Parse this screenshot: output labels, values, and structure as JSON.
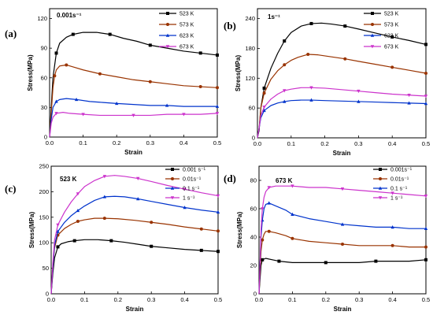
{
  "chart_data": [
    {
      "type": "line",
      "panel_label": "(a)",
      "annotation": "0.001s⁻¹",
      "xlabel": "Strain",
      "ylabel": "Stress(MPa)",
      "xlim": [
        0,
        0.5
      ],
      "ylim": [
        0,
        130
      ],
      "xticks": [
        "0.0",
        "0.1",
        "0.2",
        "0.3",
        "0.4",
        "0.5"
      ],
      "yticks": [
        "0",
        "30",
        "60",
        "90",
        "120"
      ],
      "legend_position": "top-right",
      "series": [
        {
          "name": "523 K",
          "color": "#000000",
          "marker": "square",
          "x": [
            0,
            0.005,
            0.01,
            0.02,
            0.03,
            0.05,
            0.07,
            0.1,
            0.14,
            0.18,
            0.22,
            0.26,
            0.3,
            0.35,
            0.4,
            0.45,
            0.5
          ],
          "y": [
            0,
            30,
            60,
            85,
            95,
            101,
            104,
            106,
            106,
            104,
            100,
            97,
            93,
            90,
            87,
            85,
            83
          ]
        },
        {
          "name": "573 K",
          "color": "#993300",
          "marker": "circle",
          "x": [
            0,
            0.005,
            0.01,
            0.015,
            0.02,
            0.03,
            0.05,
            0.07,
            0.1,
            0.15,
            0.2,
            0.25,
            0.3,
            0.35,
            0.4,
            0.45,
            0.5
          ],
          "y": [
            0,
            25,
            50,
            62,
            68,
            72,
            73,
            71,
            68,
            64,
            61,
            58,
            56,
            54,
            52,
            51,
            50
          ]
        },
        {
          "name": "623 K",
          "color": "#0033cc",
          "marker": "triangle-up",
          "x": [
            0,
            0.005,
            0.01,
            0.02,
            0.03,
            0.05,
            0.08,
            0.12,
            0.16,
            0.2,
            0.25,
            0.3,
            0.35,
            0.4,
            0.45,
            0.5
          ],
          "y": [
            0,
            18,
            30,
            36,
            38,
            39,
            38,
            36,
            35,
            34,
            33,
            32,
            32,
            31,
            31,
            31
          ]
        },
        {
          "name": "673 K",
          "color": "#cc33cc",
          "marker": "triangle-down",
          "x": [
            0,
            0.005,
            0.01,
            0.02,
            0.04,
            0.06,
            0.1,
            0.15,
            0.2,
            0.25,
            0.3,
            0.35,
            0.4,
            0.45,
            0.5
          ],
          "y": [
            0,
            14,
            20,
            24,
            25,
            24,
            23,
            22,
            22,
            22,
            22,
            23,
            23,
            23,
            24
          ]
        }
      ]
    },
    {
      "type": "line",
      "panel_label": "(b)",
      "annotation": "1s⁻¹",
      "xlabel": "Strain",
      "ylabel": "Stress(MPa)",
      "xlim": [
        0,
        0.5
      ],
      "ylim": [
        0,
        260
      ],
      "xticks": [
        "0.0",
        "0.1",
        "0.2",
        "0.3",
        "0.4",
        "0.5"
      ],
      "yticks": [
        "0",
        "60",
        "120",
        "180",
        "240"
      ],
      "legend_position": "top-right",
      "series": [
        {
          "name": "523 K",
          "color": "#000000",
          "marker": "square",
          "x": [
            0,
            0.005,
            0.01,
            0.02,
            0.04,
            0.06,
            0.08,
            0.1,
            0.13,
            0.16,
            0.19,
            0.22,
            0.26,
            0.3,
            0.35,
            0.4,
            0.45,
            0.5
          ],
          "y": [
            0,
            15,
            60,
            100,
            140,
            170,
            195,
            212,
            225,
            230,
            231,
            229,
            225,
            219,
            211,
            203,
            196,
            188
          ]
        },
        {
          "name": "573 K",
          "color": "#993300",
          "marker": "circle",
          "x": [
            0,
            0.005,
            0.01,
            0.02,
            0.04,
            0.06,
            0.08,
            0.1,
            0.12,
            0.15,
            0.18,
            0.22,
            0.26,
            0.3,
            0.35,
            0.4,
            0.45,
            0.5
          ],
          "y": [
            0,
            20,
            60,
            90,
            118,
            135,
            147,
            156,
            162,
            168,
            167,
            163,
            159,
            154,
            148,
            142,
            136,
            130
          ]
        },
        {
          "name": "623 K",
          "color": "#0033cc",
          "marker": "triangle-up",
          "x": [
            0,
            0.005,
            0.01,
            0.02,
            0.04,
            0.06,
            0.08,
            0.1,
            0.13,
            0.16,
            0.2,
            0.25,
            0.3,
            0.35,
            0.4,
            0.45,
            0.5
          ],
          "y": [
            0,
            20,
            40,
            55,
            65,
            70,
            73,
            75,
            76,
            76,
            75,
            74,
            73,
            72,
            71,
            70,
            69
          ]
        },
        {
          "name": "673 K",
          "color": "#cc33cc",
          "marker": "triangle-down",
          "x": [
            0,
            0.005,
            0.01,
            0.02,
            0.04,
            0.06,
            0.08,
            0.1,
            0.13,
            0.16,
            0.2,
            0.25,
            0.3,
            0.35,
            0.4,
            0.45,
            0.5
          ],
          "y": [
            0,
            20,
            45,
            62,
            78,
            88,
            95,
            98,
            101,
            101,
            100,
            97,
            94,
            91,
            88,
            86,
            84
          ]
        }
      ]
    },
    {
      "type": "line",
      "panel_label": "(c)",
      "annotation": "523 K",
      "xlabel": "Strain",
      "ylabel": "Stress(MPa)",
      "xlim": [
        0,
        0.5
      ],
      "ylim": [
        0,
        250
      ],
      "xticks": [
        "0.0",
        "0.1",
        "0.2",
        "0.3",
        "0.4",
        "0.5"
      ],
      "yticks": [
        "0",
        "50",
        "100",
        "150",
        "200",
        "250"
      ],
      "legend_position": "top-right",
      "series": [
        {
          "name": "0.001 s⁻¹",
          "color": "#000000",
          "marker": "square",
          "x": [
            0,
            0.005,
            0.01,
            0.02,
            0.03,
            0.05,
            0.07,
            0.1,
            0.14,
            0.18,
            0.22,
            0.26,
            0.3,
            0.35,
            0.4,
            0.45,
            0.5
          ],
          "y": [
            0,
            40,
            70,
            92,
            98,
            102,
            104,
            106,
            106,
            104,
            101,
            97,
            93,
            90,
            87,
            85,
            83
          ]
        },
        {
          "name": "0.01s⁻¹",
          "color": "#993300",
          "marker": "circle",
          "x": [
            0,
            0.005,
            0.01,
            0.02,
            0.04,
            0.06,
            0.08,
            0.1,
            0.13,
            0.16,
            0.2,
            0.25,
            0.3,
            0.35,
            0.4,
            0.45,
            0.5
          ],
          "y": [
            0,
            50,
            90,
            115,
            128,
            136,
            142,
            145,
            148,
            148,
            147,
            144,
            140,
            136,
            131,
            127,
            123
          ]
        },
        {
          "name": "0.1 s⁻¹",
          "color": "#0033cc",
          "marker": "triangle-up",
          "x": [
            0,
            0.005,
            0.01,
            0.02,
            0.04,
            0.06,
            0.08,
            0.1,
            0.13,
            0.16,
            0.19,
            0.22,
            0.26,
            0.3,
            0.35,
            0.4,
            0.45,
            0.5
          ],
          "y": [
            0,
            50,
            95,
            122,
            140,
            153,
            163,
            172,
            183,
            190,
            191,
            190,
            186,
            181,
            175,
            169,
            164,
            160
          ]
        },
        {
          "name": "1 s⁻¹",
          "color": "#cc33cc",
          "marker": "triangle-down",
          "x": [
            0,
            0.005,
            0.01,
            0.02,
            0.04,
            0.06,
            0.08,
            0.1,
            0.13,
            0.16,
            0.19,
            0.22,
            0.26,
            0.3,
            0.35,
            0.4,
            0.45,
            0.5
          ],
          "y": [
            0,
            60,
            105,
            135,
            160,
            180,
            196,
            210,
            222,
            230,
            232,
            230,
            226,
            220,
            212,
            205,
            198,
            192
          ]
        }
      ]
    },
    {
      "type": "line",
      "panel_label": "(d)",
      "annotation": "673 K",
      "xlabel": "Strain",
      "ylabel": "Stress(MPa)",
      "xlim": [
        0,
        0.5
      ],
      "ylim": [
        0,
        90
      ],
      "xticks": [
        "0.0",
        "0.1",
        "0.2",
        "0.3",
        "0.4",
        "0.5"
      ],
      "yticks": [
        "0",
        "20",
        "40",
        "60",
        "80"
      ],
      "legend_position": "top-right",
      "series": [
        {
          "name": "0.001s⁻¹",
          "color": "#000000",
          "marker": "square",
          "x": [
            0,
            0.003,
            0.006,
            0.01,
            0.02,
            0.04,
            0.06,
            0.1,
            0.15,
            0.2,
            0.25,
            0.3,
            0.35,
            0.4,
            0.45,
            0.5
          ],
          "y": [
            0,
            10,
            20,
            24,
            25,
            24,
            23,
            22,
            22,
            22,
            22,
            22,
            23,
            23,
            23,
            24
          ]
        },
        {
          "name": "0.01s⁻¹",
          "color": "#993300",
          "marker": "circle",
          "x": [
            0,
            0.003,
            0.006,
            0.01,
            0.015,
            0.02,
            0.03,
            0.05,
            0.08,
            0.1,
            0.15,
            0.2,
            0.25,
            0.3,
            0.35,
            0.4,
            0.45,
            0.5
          ],
          "y": [
            0,
            15,
            30,
            38,
            42,
            44,
            44,
            43,
            41,
            39,
            37,
            36,
            35,
            34,
            34,
            34,
            33,
            33
          ]
        },
        {
          "name": "0.1 s⁻¹",
          "color": "#0033cc",
          "marker": "triangle-up",
          "x": [
            0,
            0.003,
            0.006,
            0.01,
            0.015,
            0.02,
            0.03,
            0.05,
            0.08,
            0.1,
            0.15,
            0.2,
            0.25,
            0.3,
            0.35,
            0.4,
            0.45,
            0.5
          ],
          "y": [
            0,
            20,
            40,
            52,
            60,
            63,
            64,
            62,
            59,
            56,
            53,
            51,
            49,
            48,
            47,
            47,
            46,
            46
          ]
        },
        {
          "name": "1 s⁻¹",
          "color": "#cc33cc",
          "marker": "triangle-down",
          "x": [
            0,
            0.003,
            0.006,
            0.01,
            0.015,
            0.02,
            0.03,
            0.05,
            0.08,
            0.1,
            0.15,
            0.2,
            0.25,
            0.3,
            0.35,
            0.4,
            0.45,
            0.5
          ],
          "y": [
            0,
            20,
            45,
            60,
            68,
            72,
            75,
            76,
            76,
            76,
            75,
            75,
            74,
            73,
            72,
            71,
            70,
            69
          ]
        }
      ]
    }
  ]
}
